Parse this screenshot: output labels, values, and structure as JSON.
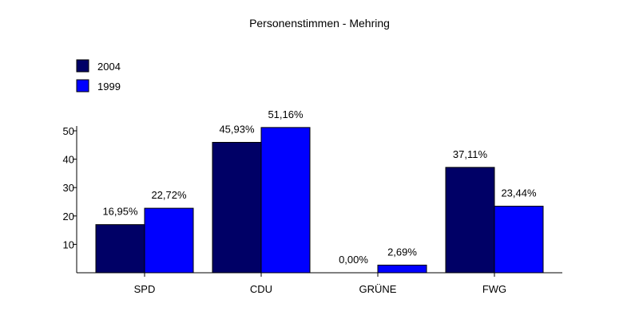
{
  "chart_data": {
    "type": "bar",
    "title": "Personenstimmen - Mehring",
    "xlabel": "",
    "ylabel": "",
    "categories": [
      "SPD",
      "CDU",
      "GRÜNE",
      "FWG"
    ],
    "series": [
      {
        "name": "2004",
        "color": "#000066",
        "values": [
          16.95,
          45.93,
          0.0,
          37.11
        ],
        "labels": [
          "16,95%",
          "45,93%",
          "0,00%",
          "37,11%"
        ]
      },
      {
        "name": "1999",
        "color": "#0000ff",
        "values": [
          22.72,
          51.16,
          2.69,
          23.44
        ],
        "labels": [
          "22,72%",
          "51,16%",
          "2,69%",
          "23,44%"
        ]
      }
    ],
    "ylim": [
      0,
      50
    ],
    "yticks": [
      10,
      20,
      30,
      40,
      50
    ],
    "grid": false,
    "legend_position": "top-left"
  }
}
